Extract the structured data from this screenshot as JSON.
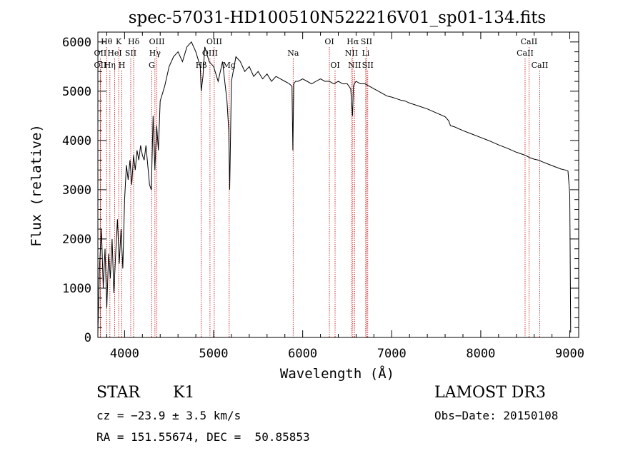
{
  "chart_data": {
    "type": "line",
    "title": "spec-57031-HD100510N522216V01_sp01-134.fits",
    "xlabel": "Wavelength (Å)",
    "ylabel": "Flux (relative)",
    "xlim": [
      3700,
      9100
    ],
    "ylim": [
      0,
      6200
    ],
    "xticks": [
      4000,
      5000,
      6000,
      7000,
      8000,
      9000
    ],
    "yticks": [
      0,
      1000,
      2000,
      3000,
      4000,
      5000,
      6000
    ],
    "grid": false,
    "series": [
      {
        "x": [
          3700,
          3720,
          3740,
          3760,
          3780,
          3800,
          3820,
          3840,
          3860,
          3880,
          3900,
          3920,
          3940,
          3960,
          3980,
          4000,
          4020,
          4040,
          4060,
          4080,
          4100,
          4120,
          4140,
          4160,
          4180,
          4200,
          4220,
          4240,
          4260,
          4280,
          4300,
          4320,
          4340,
          4360,
          4380,
          4400,
          4450,
          4500,
          4550,
          4600,
          4650,
          4700,
          4750,
          4800,
          4850,
          4860,
          4880,
          4900,
          4950,
          5000,
          5050,
          5100,
          5150,
          5170,
          5180,
          5200,
          5250,
          5300,
          5350,
          5400,
          5450,
          5500,
          5550,
          5600,
          5650,
          5700,
          5750,
          5800,
          5850,
          5880,
          5890,
          5900,
          5920,
          5950,
          6000,
          6050,
          6100,
          6150,
          6200,
          6250,
          6300,
          6350,
          6400,
          6450,
          6500,
          6540,
          6560,
          6570,
          6580,
          6600,
          6650,
          6700,
          6750,
          6800,
          6850,
          6900,
          6950,
          7000,
          7050,
          7100,
          7150,
          7200,
          7300,
          7400,
          7500,
          7600,
          7640,
          7660,
          7700,
          7800,
          7900,
          8000,
          8100,
          8200,
          8300,
          8400,
          8500,
          8550,
          8600,
          8650,
          8700,
          8800,
          8900,
          8950,
          8980,
          9000,
          9010
        ],
        "y": [
          100,
          1500,
          2200,
          1000,
          1800,
          600,
          1700,
          1200,
          2000,
          900,
          1700,
          2400,
          1500,
          2200,
          1400,
          2800,
          3500,
          3200,
          3600,
          3100,
          3700,
          3400,
          3800,
          3600,
          3900,
          3700,
          3600,
          3900,
          3500,
          3100,
          3000,
          4500,
          3400,
          4300,
          3800,
          4800,
          5100,
          5500,
          5700,
          5800,
          5600,
          5900,
          6000,
          5800,
          5500,
          5000,
          5300,
          5900,
          5600,
          5500,
          5200,
          5600,
          4800,
          4200,
          3000,
          5200,
          5700,
          5600,
          5400,
          5500,
          5300,
          5400,
          5250,
          5350,
          5200,
          5300,
          5250,
          5200,
          5150,
          5100,
          3800,
          5150,
          5200,
          5200,
          5250,
          5200,
          5150,
          5200,
          5250,
          5200,
          5200,
          5150,
          5200,
          5150,
          5150,
          5050,
          4500,
          5100,
          5150,
          5200,
          5150,
          5150,
          5100,
          5050,
          5000,
          4950,
          4900,
          4880,
          4850,
          4820,
          4800,
          4760,
          4700,
          4640,
          4560,
          4480,
          4400,
          4300,
          4280,
          4200,
          4130,
          4060,
          3990,
          3910,
          3840,
          3760,
          3700,
          3650,
          3620,
          3600,
          3560,
          3490,
          3420,
          3400,
          3380,
          2900,
          100
        ]
      }
    ],
    "line_markers": [
      {
        "label": "Hθ",
        "x": 3798,
        "row": 0
      },
      {
        "label": "OII",
        "x": 3727,
        "row": 1
      },
      {
        "label": "OII",
        "x": 3727,
        "row": 2
      },
      {
        "label": "K",
        "x": 3934,
        "row": 0
      },
      {
        "label": "HeI",
        "x": 3889,
        "row": 1
      },
      {
        "label": "Hη",
        "x": 3835,
        "row": 2
      },
      {
        "label": "Hδ",
        "x": 4102,
        "row": 0
      },
      {
        "label": "SII",
        "x": 4069,
        "row": 1
      },
      {
        "label": "H",
        "x": 3969,
        "row": 2
      },
      {
        "label": "OIII",
        "x": 4363,
        "row": 0
      },
      {
        "label": "Hγ",
        "x": 4341,
        "row": 1
      },
      {
        "label": "G",
        "x": 4305,
        "row": 2
      },
      {
        "label": "OIII",
        "x": 5007,
        "row": 0
      },
      {
        "label": "OIII",
        "x": 4959,
        "row": 1
      },
      {
        "label": "Hβ",
        "x": 4861,
        "row": 2
      },
      {
        "label": "Mg",
        "x": 5175,
        "row": 2
      },
      {
        "label": "Na",
        "x": 5893,
        "row": 1
      },
      {
        "label": "OI",
        "x": 6300,
        "row": 0
      },
      {
        "label": "OI",
        "x": 6364,
        "row": 2
      },
      {
        "label": "Hα",
        "x": 6563,
        "row": 0
      },
      {
        "label": "NII",
        "x": 6548,
        "row": 1
      },
      {
        "label": "NII",
        "x": 6583,
        "row": 2
      },
      {
        "label": "SII",
        "x": 6717,
        "row": 0
      },
      {
        "label": "Li",
        "x": 6708,
        "row": 1
      },
      {
        "label": "SII",
        "x": 6731,
        "row": 2
      },
      {
        "label": "CaII",
        "x": 8542,
        "row": 0
      },
      {
        "label": "CaII",
        "x": 8498,
        "row": 1
      },
      {
        "label": "CaII",
        "x": 8662,
        "row": 2
      }
    ]
  },
  "info": {
    "object_class": "STAR",
    "subclass": "K1",
    "survey": "LAMOST DR3",
    "cz": "cz = −23.9 ± 3.5 km/s",
    "obs_date": "Obs−Date: 20150108",
    "coords": "RA = 151.55674, DEC =  50.85853"
  }
}
